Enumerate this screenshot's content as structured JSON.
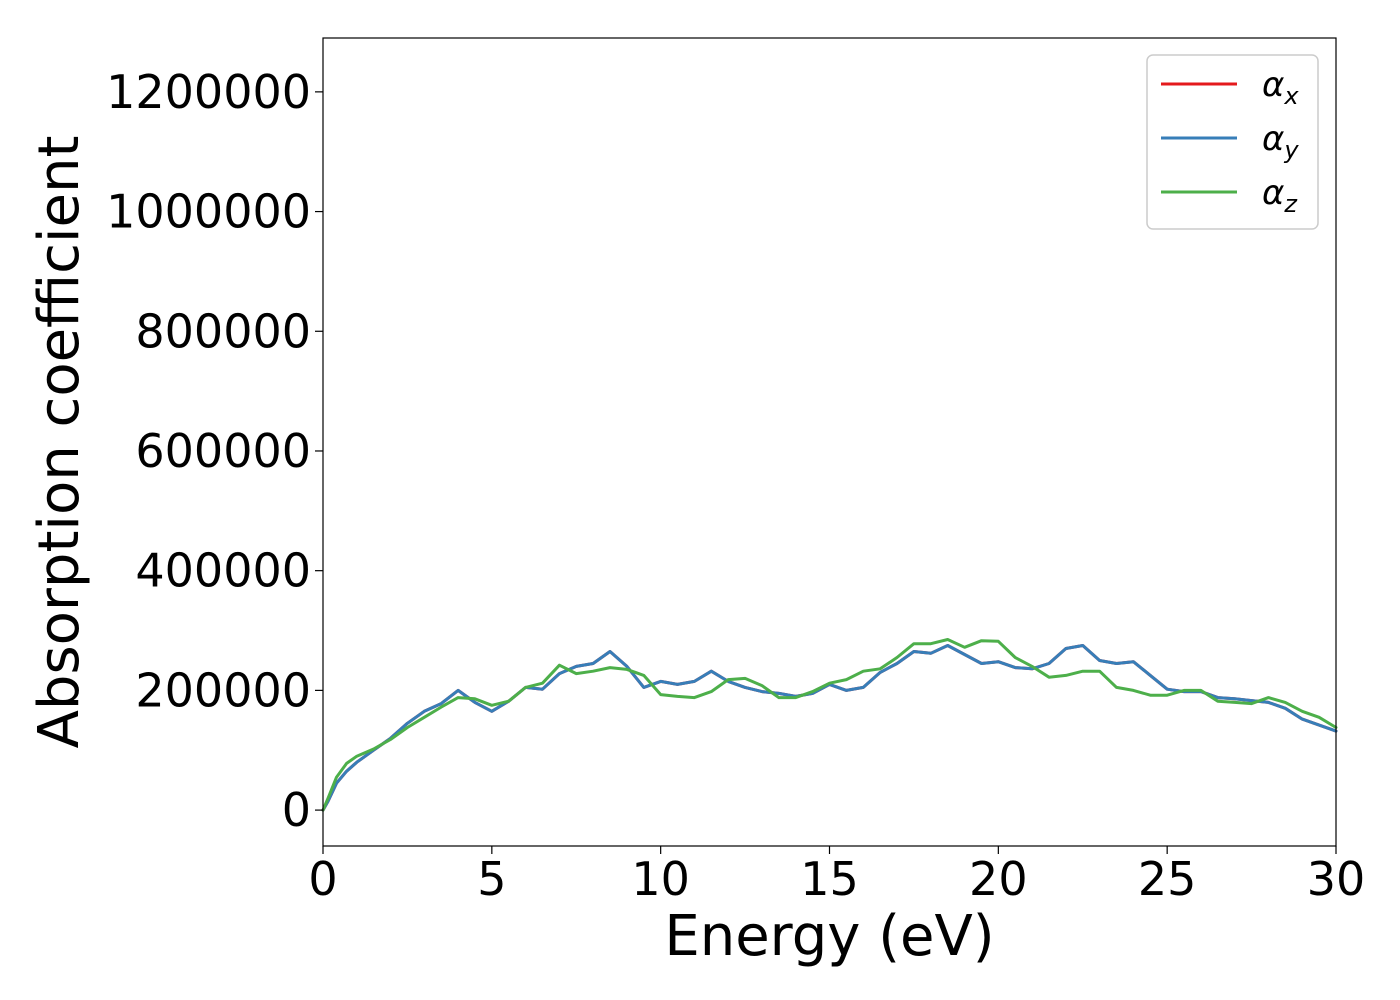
{
  "chart_data": {
    "type": "line",
    "xlabel": "Energy (eV)",
    "ylabel": "Absorption coefficient",
    "xlim": [
      0,
      30
    ],
    "ylim": [
      -60000,
      1290000
    ],
    "xticks": [
      0,
      5,
      10,
      15,
      20,
      25,
      30
    ],
    "yticks": [
      0,
      200000,
      400000,
      600000,
      800000,
      1000000,
      1200000
    ],
    "grid": false,
    "legend_position": "top-right",
    "series": [
      {
        "name": "x",
        "symbol": "α",
        "color": "#e41a1c",
        "x": [
          0,
          0.15,
          0.4,
          0.7,
          1.0,
          1.5,
          2.0,
          2.5,
          3.0,
          3.5,
          4.0,
          4.5,
          5.0,
          5.5,
          6.0,
          6.5,
          7.0,
          7.5,
          8.0,
          8.5,
          9.0,
          9.5,
          10.0,
          10.5,
          11.0,
          11.5,
          12.0,
          12.5,
          13.0,
          13.5,
          14.0,
          14.5,
          15.0,
          15.5,
          16.0,
          16.5,
          17.0,
          17.5,
          18.0,
          18.5,
          19.0,
          19.5,
          20.0,
          20.5,
          21.0,
          21.5,
          22.0,
          22.5,
          23.0,
          23.5,
          24.0,
          24.5,
          25.0,
          25.5,
          26.0,
          26.5,
          27.0,
          27.5,
          28.0,
          28.5,
          29.0,
          29.5,
          30.0
        ],
        "y": [
          0,
          15000,
          45000,
          65000,
          80000,
          100000,
          120000,
          145000,
          165000,
          178000,
          200000,
          180000,
          165000,
          182000,
          205000,
          202000,
          228000,
          240000,
          245000,
          265000,
          240000,
          205000,
          215000,
          210000,
          215000,
          232000,
          215000,
          205000,
          198000,
          195000,
          190000,
          195000,
          210000,
          200000,
          205000,
          230000,
          245000,
          265000,
          262000,
          275000,
          260000,
          245000,
          248000,
          238000,
          236000,
          245000,
          270000,
          275000,
          250000,
          245000,
          248000,
          225000,
          202000,
          198000,
          198000,
          188000,
          186000,
          183000,
          180000,
          170000,
          152000,
          142000,
          132000
        ]
      },
      {
        "name": "y",
        "symbol": "α",
        "color": "#377eb8",
        "x": [
          0,
          0.15,
          0.4,
          0.7,
          1.0,
          1.5,
          2.0,
          2.5,
          3.0,
          3.5,
          4.0,
          4.5,
          5.0,
          5.5,
          6.0,
          6.5,
          7.0,
          7.5,
          8.0,
          8.5,
          9.0,
          9.5,
          10.0,
          10.5,
          11.0,
          11.5,
          12.0,
          12.5,
          13.0,
          13.5,
          14.0,
          14.5,
          15.0,
          15.5,
          16.0,
          16.5,
          17.0,
          17.5,
          18.0,
          18.5,
          19.0,
          19.5,
          20.0,
          20.5,
          21.0,
          21.5,
          22.0,
          22.5,
          23.0,
          23.5,
          24.0,
          24.5,
          25.0,
          25.5,
          26.0,
          26.5,
          27.0,
          27.5,
          28.0,
          28.5,
          29.0,
          29.5,
          30.0
        ],
        "y": [
          0,
          15000,
          45000,
          65000,
          80000,
          100000,
          120000,
          145000,
          165000,
          178000,
          200000,
          180000,
          165000,
          182000,
          205000,
          202000,
          228000,
          240000,
          245000,
          265000,
          240000,
          205000,
          215000,
          210000,
          215000,
          232000,
          215000,
          205000,
          198000,
          195000,
          190000,
          195000,
          210000,
          200000,
          205000,
          230000,
          245000,
          265000,
          262000,
          275000,
          260000,
          245000,
          248000,
          238000,
          236000,
          245000,
          270000,
          275000,
          250000,
          245000,
          248000,
          225000,
          202000,
          198000,
          198000,
          188000,
          186000,
          183000,
          180000,
          170000,
          152000,
          142000,
          132000
        ]
      },
      {
        "name": "z",
        "symbol": "α",
        "color": "#4daf4a",
        "x": [
          0,
          0.15,
          0.4,
          0.7,
          1.0,
          1.5,
          2.0,
          2.5,
          3.0,
          3.5,
          4.0,
          4.5,
          5.0,
          5.5,
          6.0,
          6.5,
          7.0,
          7.5,
          8.0,
          8.5,
          9.0,
          9.5,
          10.0,
          10.5,
          11.0,
          11.5,
          12.0,
          12.5,
          13.0,
          13.5,
          14.0,
          14.5,
          15.0,
          15.5,
          16.0,
          16.5,
          17.0,
          17.5,
          18.0,
          18.5,
          19.0,
          19.5,
          20.0,
          20.5,
          21.0,
          21.5,
          22.0,
          22.5,
          23.0,
          23.5,
          24.0,
          24.5,
          25.0,
          25.5,
          26.0,
          26.5,
          27.0,
          27.5,
          28.0,
          28.5,
          29.0,
          29.5,
          30.0
        ],
        "y": [
          0,
          20000,
          55000,
          78000,
          90000,
          102000,
          118000,
          138000,
          155000,
          172000,
          188000,
          186000,
          175000,
          182000,
          205000,
          212000,
          242000,
          228000,
          232000,
          238000,
          235000,
          225000,
          193000,
          190000,
          188000,
          198000,
          218000,
          220000,
          208000,
          188000,
          188000,
          198000,
          212000,
          218000,
          232000,
          236000,
          255000,
          278000,
          278000,
          285000,
          272000,
          283000,
          282000,
          255000,
          240000,
          222000,
          225000,
          232000,
          232000,
          205000,
          200000,
          192000,
          192000,
          200000,
          200000,
          182000,
          180000,
          178000,
          188000,
          180000,
          165000,
          155000,
          138000
        ]
      }
    ]
  }
}
